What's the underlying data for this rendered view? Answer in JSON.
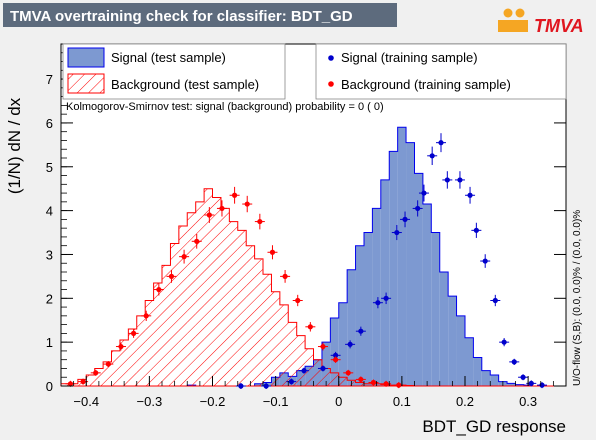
{
  "header": {
    "title": "TMVA overtraining check for classifier: BDT_GD",
    "logo_text": "TMVA"
  },
  "annotation": {
    "ks_text": "Kolmogorov-Smirnov test: signal (background) probability =     0 (    0)",
    "overflow_text": "U/O-flow (S,B): (0.0, 0.0)% / (0.0, 0.0)%"
  },
  "colors": {
    "signal_fill": "#7d99d1",
    "signal_line": "#0000ee",
    "signal_points": "#0000cc",
    "background_line": "#ff0000",
    "background_points": "#ff0000",
    "title_box": "#5d6b7d",
    "frame_bg": "#ffffff"
  },
  "chart_data": {
    "type": "bar",
    "xlabel": "BDT_GD response",
    "ylabel": "(1/N) dN / dx",
    "xlim": [
      -0.44,
      0.36
    ],
    "ylim": [
      0,
      7.8
    ],
    "x_ticks": [
      -0.4,
      -0.3,
      -0.2,
      -0.1,
      0,
      0.1,
      0.2,
      0.3
    ],
    "x_tick_labels": [
      "−0.4",
      "−0.3",
      "−0.2",
      "−0.1",
      "0",
      "0.1",
      "0.2",
      "0.3"
    ],
    "y_ticks": [
      0,
      1,
      2,
      3,
      4,
      5,
      6,
      7
    ],
    "y_tick_labels": [
      "0",
      "1",
      "2",
      "3",
      "4",
      "5",
      "6",
      "7"
    ],
    "legend_position": "top",
    "legend": [
      {
        "label": "Signal (test sample)",
        "style": "filled-box"
      },
      {
        "label": "Background (test sample)",
        "style": "hatched-box"
      },
      {
        "label": "Signal (training sample)",
        "style": "marker"
      },
      {
        "label": "Background (training sample)",
        "style": "marker"
      }
    ],
    "bin_edges": [
      -0.44,
      -0.4266,
      -0.4133,
      -0.4,
      -0.3866,
      -0.3733,
      -0.36,
      -0.3466,
      -0.3333,
      -0.32,
      -0.3066,
      -0.2933,
      -0.28,
      -0.2666,
      -0.2533,
      -0.24,
      -0.2266,
      -0.2133,
      -0.2,
      -0.1866,
      -0.1733,
      -0.16,
      -0.1466,
      -0.1333,
      -0.12,
      -0.1066,
      -0.0933,
      -0.08,
      -0.0666,
      -0.0533,
      -0.04,
      -0.0266,
      -0.0133,
      0.0,
      0.0133,
      0.0266,
      0.04,
      0.0533,
      0.0666,
      0.08,
      0.0933,
      0.1066,
      0.12,
      0.1333,
      0.1466,
      0.16,
      0.1733,
      0.1866,
      0.2,
      0.2133,
      0.2266,
      0.24,
      0.2533,
      0.2666,
      0.28,
      0.2933,
      0.3066,
      0.32,
      0.3333,
      0.3466,
      0.36
    ],
    "series": [
      {
        "name": "Signal (test sample)",
        "values": [
          0,
          0,
          0,
          0,
          0,
          0,
          0,
          0,
          0,
          0,
          0,
          0,
          0,
          0,
          0,
          0.02,
          0,
          0,
          0,
          0,
          0,
          0,
          0,
          0.05,
          0.08,
          0.2,
          0.3,
          0.22,
          0.35,
          0.45,
          0.6,
          1.0,
          1.55,
          1.9,
          2.65,
          3.2,
          3.5,
          4.05,
          4.7,
          5.35,
          5.9,
          5.55,
          4.85,
          4.15,
          3.5,
          2.6,
          2.05,
          1.6,
          1.1,
          0.65,
          0.35,
          0.25,
          0.1,
          0.06,
          0.03,
          0.02,
          0,
          0,
          0,
          0
        ]
      },
      {
        "name": "Background (test sample)",
        "values": [
          0.05,
          0.05,
          0.15,
          0.25,
          0.4,
          0.55,
          0.8,
          1.05,
          1.3,
          1.6,
          1.95,
          2.35,
          2.75,
          3.25,
          3.65,
          3.95,
          4.2,
          4.5,
          4.3,
          4.05,
          3.75,
          3.55,
          3.2,
          2.9,
          2.55,
          2.15,
          1.85,
          1.45,
          1.15,
          0.85,
          0.6,
          0.4,
          0.3,
          0.2,
          0.13,
          0.08,
          0.05,
          0.05,
          0.03,
          0.02,
          0.02,
          0.01,
          0,
          0,
          0,
          0,
          0,
          0,
          0,
          0,
          0,
          0,
          0,
          0,
          0,
          0,
          0,
          0,
          0,
          0
        ]
      },
      {
        "name": "Signal (training sample)",
        "x": [
          -0.155,
          -0.115,
          -0.075,
          -0.055,
          -0.025,
          -0.005,
          0.018,
          0.035,
          0.062,
          0.075,
          0.092,
          0.105,
          0.125,
          0.135,
          0.148,
          0.162,
          0.172,
          0.192,
          0.208,
          0.218,
          0.232,
          0.248,
          0.262,
          0.278,
          0.292,
          0.305,
          0.322
        ],
        "y": [
          0.0,
          0.0,
          0.1,
          0.35,
          0.4,
          0.7,
          0.95,
          1.25,
          1.9,
          2.0,
          3.5,
          3.8,
          4.05,
          4.4,
          5.25,
          5.55,
          4.7,
          4.7,
          4.35,
          3.55,
          2.85,
          1.95,
          1.0,
          0.55,
          0.2,
          0.06,
          0.02
        ]
      },
      {
        "name": "Background (training sample)",
        "x": [
          -0.425,
          -0.405,
          -0.385,
          -0.365,
          -0.345,
          -0.325,
          -0.305,
          -0.285,
          -0.265,
          -0.245,
          -0.225,
          -0.205,
          -0.185,
          -0.165,
          -0.145,
          -0.125,
          -0.105,
          -0.085,
          -0.065,
          -0.045,
          -0.025,
          -0.005,
          0.015,
          0.035,
          0.055,
          0.075,
          0.095
        ],
        "y": [
          0.05,
          0.1,
          0.3,
          0.5,
          0.9,
          1.2,
          1.6,
          2.2,
          2.5,
          2.95,
          3.3,
          3.9,
          4.05,
          4.35,
          4.15,
          3.75,
          3.05,
          2.5,
          1.95,
          1.35,
          0.9,
          0.6,
          0.3,
          0.15,
          0.08,
          0.05,
          0.02
        ]
      }
    ]
  }
}
